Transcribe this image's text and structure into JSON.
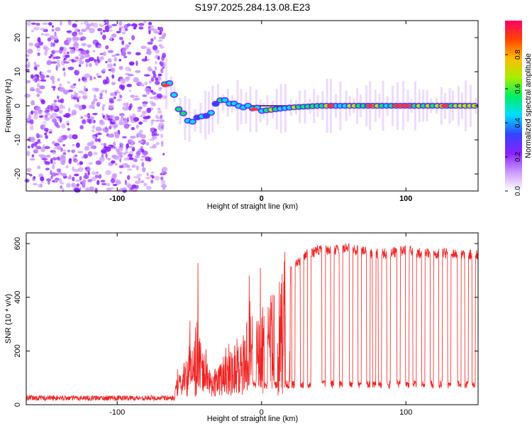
{
  "title": "S197.2025.284.13.08.E23",
  "chart_data": [
    {
      "type": "heatmap",
      "xlabel": "Height of straight line (km)",
      "ylabel": "Frequency (Hz)",
      "xlim": [
        -163,
        150
      ],
      "ylim": [
        -25,
        25
      ],
      "xticks": [
        -100,
        0,
        100
      ],
      "yticks": [
        -20,
        -10,
        0,
        10,
        20
      ],
      "colorbar": {
        "label": "Normalized spectral amplitude",
        "range": [
          0.0,
          1.0
        ],
        "ticks": [
          "0.0",
          "0.2",
          "0.4",
          "0.6",
          "0.8"
        ],
        "colors": [
          "#ffffff",
          "#cc99ff",
          "#8822ff",
          "#3344ff",
          "#00ddff",
          "#00ee66",
          "#aaee00",
          "#ffbb00",
          "#ff4400",
          "#ff0066"
        ]
      },
      "description_points": {
        "noise_region_x": [
          -163,
          -67
        ],
        "trend_x": [
          -68,
          -64,
          -60,
          -56,
          -52,
          -48,
          -44,
          -40,
          -36,
          -32,
          -28,
          -24,
          -20,
          -16,
          -12,
          -8,
          -4,
          0,
          10,
          20,
          40,
          60,
          80,
          100,
          120,
          150
        ],
        "trend_freq": [
          6,
          7,
          3,
          -2,
          -4,
          -4.5,
          -4,
          -3,
          -2,
          0,
          1,
          1,
          0.5,
          0,
          -0.5,
          -1,
          -1.5,
          -1.5,
          -1,
          -0.5,
          0,
          0,
          0,
          0,
          0,
          0
        ]
      }
    },
    {
      "type": "line",
      "xlabel": "Height of straight line (km)",
      "ylabel": "SNR (10 * v/v)",
      "xlim": [
        -163,
        150
      ],
      "ylim": [
        0,
        640
      ],
      "xticks": [
        -100,
        0,
        100
      ],
      "yticks": [
        0,
        200,
        400,
        600
      ],
      "series": [
        {
          "name": "SNR",
          "color": "#ee2222",
          "x": [
            -163,
            -140,
            -120,
            -100,
            -80,
            -70,
            -60,
            -55,
            -50,
            -45,
            -40,
            -35,
            -30,
            -25,
            -20,
            -15,
            -10,
            -5,
            0,
            5,
            10,
            15,
            20,
            25,
            30,
            40,
            50,
            60,
            70,
            80,
            90,
            100,
            110,
            120,
            130,
            140,
            150
          ],
          "base": [
            20,
            22,
            20,
            22,
            25,
            25,
            40,
            90,
            160,
            240,
            180,
            80,
            90,
            150,
            180,
            160,
            240,
            260,
            280,
            320,
            360,
            440,
            500,
            530,
            560,
            575,
            575,
            585,
            570,
            560,
            565,
            575,
            565,
            560,
            565,
            560,
            560
          ],
          "dropouts_x": [
            -5,
            3,
            10,
            18,
            22,
            28,
            33,
            43,
            49,
            55,
            62,
            68,
            74,
            78,
            82,
            88,
            95,
            101,
            106,
            112,
            118,
            124,
            130,
            137,
            142,
            147
          ],
          "dropout_level": 60
        }
      ]
    }
  ]
}
